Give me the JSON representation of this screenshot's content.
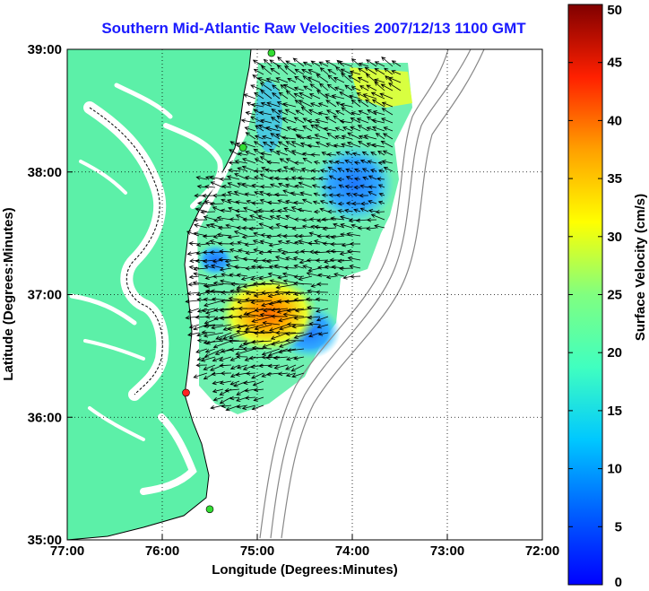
{
  "title": "Southern Mid-Atlantic Raw Velocities 2007/12/13 1100 GMT",
  "map": {
    "xlabel": "Longitude (Degrees:Minutes)",
    "ylabel": "Latitude (Degrees:Minutes)",
    "lon_range": [
      -77,
      -72
    ],
    "lat_range": [
      35,
      39
    ],
    "xticks": [
      {
        "value": -77,
        "label": "77:00"
      },
      {
        "value": -76,
        "label": "76:00"
      },
      {
        "value": -75,
        "label": "75:00"
      },
      {
        "value": -74,
        "label": "74:00"
      },
      {
        "value": -73,
        "label": "73:00"
      },
      {
        "value": -72,
        "label": "72:00"
      }
    ],
    "yticks": [
      {
        "value": 35,
        "label": "35:00"
      },
      {
        "value": 36,
        "label": "36:00"
      },
      {
        "value": 37,
        "label": "37:00"
      },
      {
        "value": 38,
        "label": "38:00"
      },
      {
        "value": 39,
        "label": "39:00"
      }
    ],
    "grid": "dotted",
    "land_color": "#5cf0a8",
    "coastline_color": "#000000",
    "bathymetry_color": "#888888"
  },
  "colorbar": {
    "label": "Surface Velocity (cm/s)",
    "range": [
      0,
      50
    ],
    "ticks": [
      {
        "value": 0,
        "label": "0"
      },
      {
        "value": 5,
        "label": "5"
      },
      {
        "value": 10,
        "label": "10"
      },
      {
        "value": 15,
        "label": "15"
      },
      {
        "value": 20,
        "label": "20"
      },
      {
        "value": 25,
        "label": "25"
      },
      {
        "value": 30,
        "label": "30"
      },
      {
        "value": 35,
        "label": "35"
      },
      {
        "value": 40,
        "label": "40"
      },
      {
        "value": 45,
        "label": "45"
      },
      {
        "value": 50,
        "label": "50"
      }
    ],
    "colormap": "jet"
  },
  "stations": [
    {
      "name": "",
      "lon": -74.85,
      "lat": 38.97,
      "color": "#33dd33"
    },
    {
      "name": "",
      "lon": -75.15,
      "lat": 38.2,
      "color": "#33dd33"
    },
    {
      "name": "",
      "lon": -75.75,
      "lat": 36.2,
      "color": "#ff2222"
    },
    {
      "name": "",
      "lon": -75.5,
      "lat": 35.25,
      "color": "#33dd33"
    }
  ]
}
